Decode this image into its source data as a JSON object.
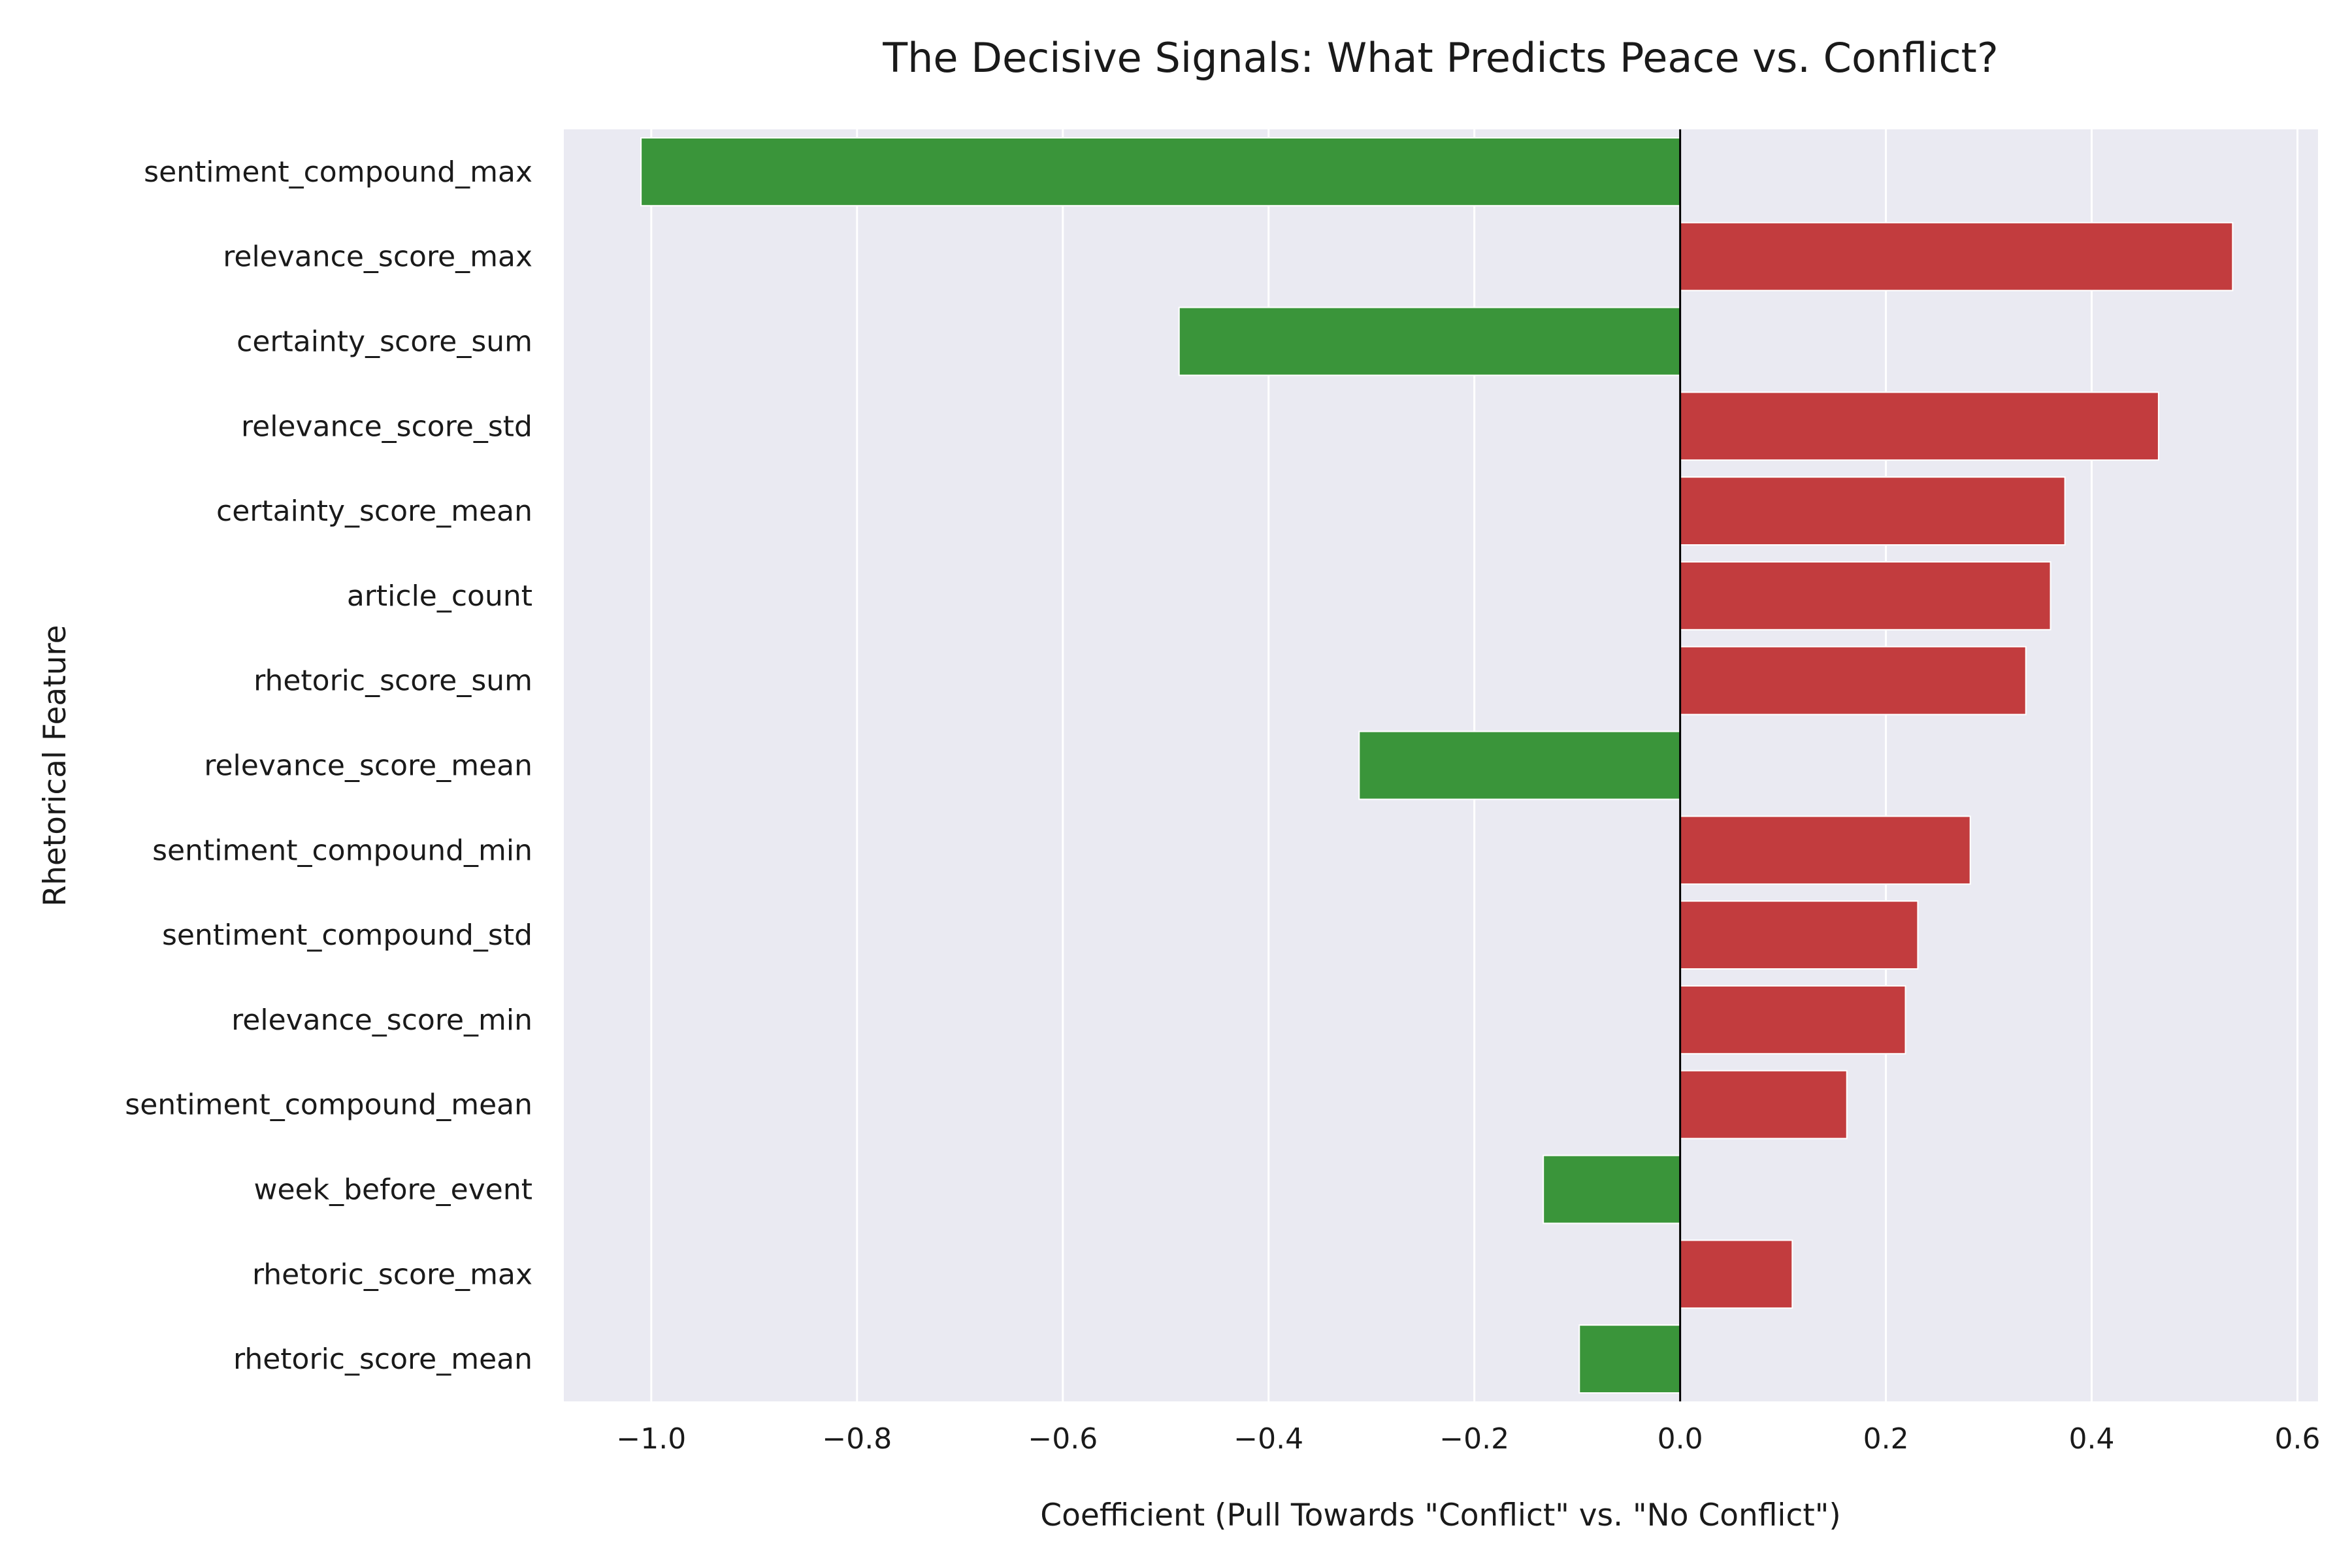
{
  "chart_data": {
    "type": "bar",
    "orientation": "horizontal",
    "title": "The Decisive Signals: What Predicts Peace vs. Conflict?",
    "xlabel": "Coefficient (Pull Towards \"Conflict\" vs. \"No Conflict\")",
    "ylabel": "Rhetorical Feature",
    "xlim": [
      -1.085,
      0.62
    ],
    "xticks": [
      -1.0,
      -0.8,
      -0.6,
      -0.4,
      -0.2,
      0.0,
      0.2,
      0.4,
      0.6
    ],
    "xtick_labels": [
      "−1.0",
      "−0.8",
      "−0.6",
      "−0.4",
      "−0.2",
      "0.0",
      "0.2",
      "0.4",
      "0.6"
    ],
    "grid": true,
    "background_color": "#eaeaf2",
    "grid_color": "#ffffff",
    "colors": {
      "positive": "#c23c3e",
      "negative": "#3a953a",
      "zero_line": "#000000"
    },
    "categories": [
      "sentiment_compound_max",
      "relevance_score_max",
      "certainty_score_sum",
      "relevance_score_std",
      "certainty_score_mean",
      "article_count",
      "rhetoric_score_sum",
      "relevance_score_mean",
      "sentiment_compound_min",
      "sentiment_compound_std",
      "relevance_score_min",
      "sentiment_compound_mean",
      "week_before_event",
      "rhetoric_score_max",
      "rhetoric_score_mean"
    ],
    "values": [
      -1.01,
      0.537,
      -0.487,
      0.465,
      0.374,
      0.36,
      0.336,
      -0.312,
      0.282,
      0.231,
      0.219,
      0.162,
      -0.133,
      0.109,
      -0.098
    ]
  }
}
